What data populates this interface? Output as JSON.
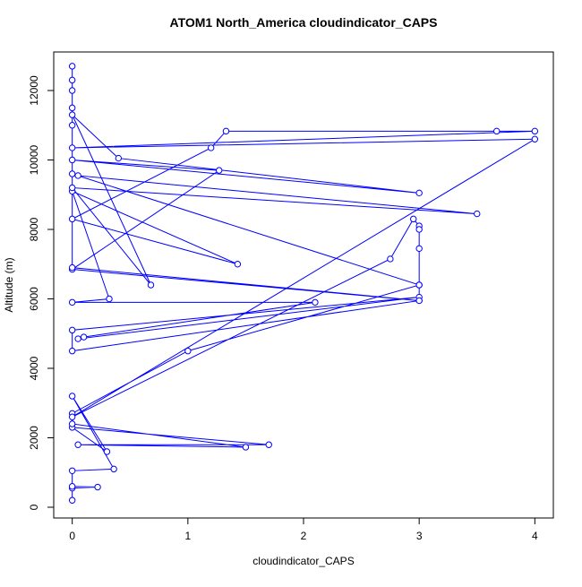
{
  "chart_data": {
    "type": "line",
    "markers": "circle",
    "title": "ATOM1 North_America cloudindicator_CAPS",
    "x_label": "cloudindicator_CAPS",
    "y_label": "Altitude (m)",
    "x": [
      0,
      0,
      0.22,
      0,
      0,
      0.36,
      0,
      0.3,
      0,
      1.7,
      0.05,
      1.5,
      0,
      0,
      1,
      3,
      3,
      0,
      0,
      3,
      0.05,
      0.1,
      2.1,
      0,
      0.32,
      0,
      1.43,
      0,
      1.2,
      1.33,
      3.67,
      4,
      0,
      4,
      0,
      2.75,
      2.95,
      3,
      3,
      3,
      3,
      0,
      0.05,
      3.5,
      0,
      0.68,
      0,
      0.4,
      3,
      0,
      1.27,
      0,
      3,
      0,
      0,
      0,
      0,
      0,
      0
    ],
    "series": [
      {
        "name": "cloudindicator_CAPS",
        "color": "#0000ff",
        "values": [
          200,
          550,
          580,
          600,
          1050,
          1100,
          3200,
          1600,
          2300,
          1800,
          1800,
          1730,
          2400,
          2700,
          4500,
          6400,
          5950,
          4500,
          5100,
          6050,
          4850,
          4900,
          5900,
          5900,
          6000,
          9100,
          7000,
          8300,
          10350,
          10830,
          10830,
          10830,
          10350,
          10600,
          2600,
          7150,
          8300,
          8100,
          8000,
          7450,
          6400,
          9600,
          9550,
          8450,
          9200,
          6400,
          11300,
          10050,
          9050,
          10000,
          9700,
          6850,
          5950,
          6900,
          11000,
          11500,
          12000,
          12300,
          12700
        ]
      }
    ],
    "xlim": [
      -0.16,
      4.16
    ],
    "ylim": [
      -310,
      13110
    ],
    "xticks": [
      0,
      1,
      2,
      3,
      4
    ],
    "yticks": [
      0,
      2000,
      4000,
      6000,
      8000,
      10000,
      12000
    ]
  }
}
